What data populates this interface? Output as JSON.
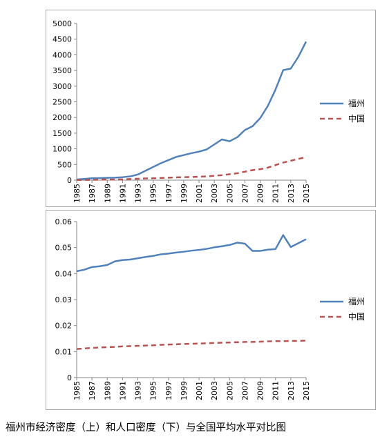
{
  "colors": {
    "fuzhou": "#4f81bd",
    "china": "#c0504d",
    "axis": "#868686",
    "grid": "#d9d9d9"
  },
  "caption": "福州市经济密度（上）和人口密度（下）与全国平均水平对比图",
  "chart_data": [
    {
      "type": "line",
      "x": [
        1985,
        1986,
        1987,
        1988,
        1989,
        1990,
        1991,
        1992,
        1993,
        1994,
        1995,
        1996,
        1997,
        1998,
        1999,
        2000,
        2001,
        2002,
        2003,
        2004,
        2005,
        2006,
        2007,
        2008,
        2009,
        2010,
        2011,
        2012,
        2013,
        2014,
        2015
      ],
      "xticks": [
        "1985",
        "1987",
        "1989",
        "1991",
        "1993",
        "1995",
        "1997",
        "1999",
        "2001",
        "2003",
        "2005",
        "2007",
        "2009",
        "2011",
        "2013",
        "2015"
      ],
      "ylim": [
        0,
        5000
      ],
      "yticks": [
        "0",
        "500",
        "1000",
        "1500",
        "2000",
        "2500",
        "3000",
        "3500",
        "4000",
        "4500",
        "5000"
      ],
      "grid": true,
      "legend_position": "right",
      "series": [
        {
          "name": "福州",
          "style": "solid",
          "values": [
            20,
            40,
            60,
            65,
            75,
            80,
            95,
            120,
            180,
            300,
            420,
            540,
            640,
            740,
            800,
            860,
            910,
            980,
            1140,
            1300,
            1240,
            1370,
            1600,
            1720,
            1980,
            2370,
            2890,
            3510,
            3560,
            3940,
            4420
          ]
        },
        {
          "name": "中国",
          "style": "dashed",
          "values": [
            5,
            8,
            10,
            15,
            18,
            20,
            25,
            35,
            45,
            55,
            60,
            70,
            80,
            90,
            95,
            100,
            110,
            120,
            140,
            160,
            190,
            220,
            270,
            320,
            350,
            400,
            480,
            560,
            620,
            680,
            730
          ]
        }
      ]
    },
    {
      "type": "line",
      "x": [
        1985,
        1986,
        1987,
        1988,
        1989,
        1990,
        1991,
        1992,
        1993,
        1994,
        1995,
        1996,
        1997,
        1998,
        1999,
        2000,
        2001,
        2002,
        2003,
        2004,
        2005,
        2006,
        2007,
        2008,
        2009,
        2010,
        2011,
        2012,
        2013,
        2014,
        2015
      ],
      "xticks": [
        "1985",
        "1987",
        "1989",
        "1991",
        "1993",
        "1995",
        "1997",
        "1999",
        "2001",
        "2003",
        "2005",
        "2007",
        "2009",
        "2011",
        "2013",
        "2015"
      ],
      "ylim": [
        0,
        0.06
      ],
      "yticks": [
        "0",
        "0.01",
        "0.02",
        "0.03",
        "0.04",
        "0.05",
        "0.06"
      ],
      "grid": true,
      "legend_position": "right",
      "series": [
        {
          "name": "福州",
          "style": "solid",
          "values": [
            0.0409,
            0.0415,
            0.0425,
            0.0428,
            0.0433,
            0.0447,
            0.0452,
            0.0454,
            0.0459,
            0.0464,
            0.0468,
            0.0474,
            0.0477,
            0.0481,
            0.0484,
            0.0488,
            0.0491,
            0.0495,
            0.0501,
            0.0505,
            0.051,
            0.0519,
            0.0515,
            0.0487,
            0.0487,
            0.0492,
            0.0494,
            0.0548,
            0.0502,
            0.0517,
            0.0532
          ]
        },
        {
          "name": "中国",
          "style": "dashed",
          "values": [
            0.011,
            0.0112,
            0.0114,
            0.0116,
            0.0117,
            0.0118,
            0.012,
            0.0121,
            0.0122,
            0.0123,
            0.0124,
            0.0126,
            0.0127,
            0.0128,
            0.0129,
            0.013,
            0.0131,
            0.0132,
            0.0133,
            0.0134,
            0.0135,
            0.0136,
            0.0137,
            0.0137,
            0.0138,
            0.0139,
            0.014,
            0.014,
            0.0141,
            0.0141,
            0.0142
          ]
        }
      ]
    }
  ]
}
